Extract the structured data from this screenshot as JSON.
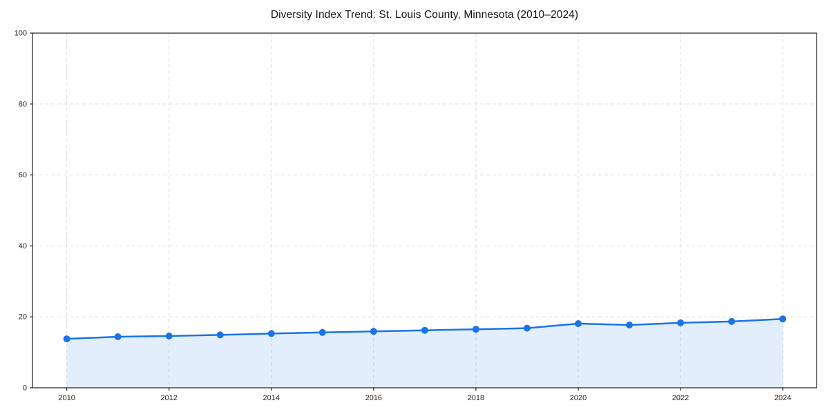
{
  "chart_data": {
    "type": "area",
    "title": "Diversity Index Trend: St. Louis County, Minnesota (2010–2024)",
    "x": [
      2010,
      2011,
      2012,
      2013,
      2014,
      2015,
      2016,
      2017,
      2018,
      2019,
      2020,
      2021,
      2022,
      2023,
      2024
    ],
    "values": [
      13.8,
      14.4,
      14.6,
      14.9,
      15.3,
      15.6,
      15.9,
      16.2,
      16.5,
      16.8,
      18.1,
      17.7,
      18.3,
      18.7,
      19.4
    ],
    "xlabel": "",
    "ylabel": "",
    "xlim": [
      2009.33,
      2024.66
    ],
    "ylim": [
      0,
      100
    ],
    "xticks": [
      2010,
      2012,
      2014,
      2016,
      2018,
      2020,
      2022,
      2024
    ],
    "yticks": [
      0,
      20,
      40,
      60,
      80,
      100
    ],
    "grid": true,
    "grid_style": "dashed",
    "legend_position": "none",
    "line_color": "#1a73e8",
    "marker_color": "#1a73e8",
    "fill_color": "rgba(26,115,232,0.12)",
    "axis_color": "#1a1a1a",
    "grid_color": "#dcdcdc",
    "tick_label_color": "#222222",
    "title_color": "#111111"
  }
}
